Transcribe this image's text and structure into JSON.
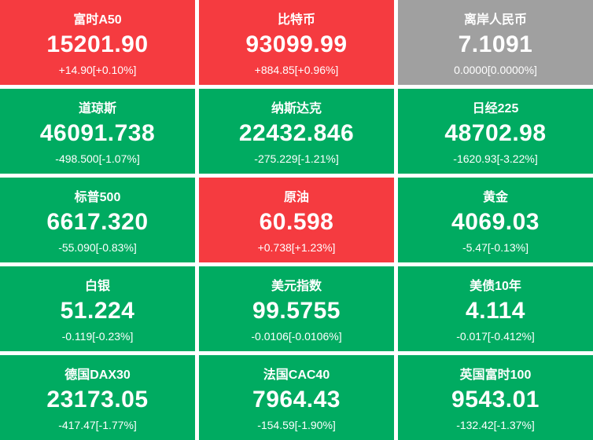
{
  "colors": {
    "up": "#f53b40",
    "down": "#00ab61",
    "flat": "#a0a0a0",
    "text": "#ffffff",
    "background": "#ffffff"
  },
  "tiles": [
    {
      "name": "富时A50",
      "price": "15201.90",
      "change": "+14.90[+0.10%]",
      "state": "up"
    },
    {
      "name": "比特币",
      "price": "93099.99",
      "change": "+884.85[+0.96%]",
      "state": "up"
    },
    {
      "name": "离岸人民币",
      "price": "7.1091",
      "change": "0.0000[0.0000%]",
      "state": "flat"
    },
    {
      "name": "道琼斯",
      "price": "46091.738",
      "change": "-498.500[-1.07%]",
      "state": "down"
    },
    {
      "name": "纳斯达克",
      "price": "22432.846",
      "change": "-275.229[-1.21%]",
      "state": "down"
    },
    {
      "name": "日经225",
      "price": "48702.98",
      "change": "-1620.93[-3.22%]",
      "state": "down"
    },
    {
      "name": "标普500",
      "price": "6617.320",
      "change": "-55.090[-0.83%]",
      "state": "down"
    },
    {
      "name": "原油",
      "price": "60.598",
      "change": "+0.738[+1.23%]",
      "state": "up"
    },
    {
      "name": "黄金",
      "price": "4069.03",
      "change": "-5.47[-0.13%]",
      "state": "down"
    },
    {
      "name": "白银",
      "price": "51.224",
      "change": "-0.119[-0.23%]",
      "state": "down"
    },
    {
      "name": "美元指数",
      "price": "99.5755",
      "change": "-0.0106[-0.0106%]",
      "state": "down"
    },
    {
      "name": "美债10年",
      "price": "4.114",
      "change": "-0.017[-0.412%]",
      "state": "down"
    },
    {
      "name": "德国DAX30",
      "price": "23173.05",
      "change": "-417.47[-1.77%]",
      "state": "down"
    },
    {
      "name": "法国CAC40",
      "price": "7964.43",
      "change": "-154.59[-1.90%]",
      "state": "down"
    },
    {
      "name": "英国富时100",
      "price": "9543.01",
      "change": "-132.42[-1.37%]",
      "state": "down"
    }
  ]
}
